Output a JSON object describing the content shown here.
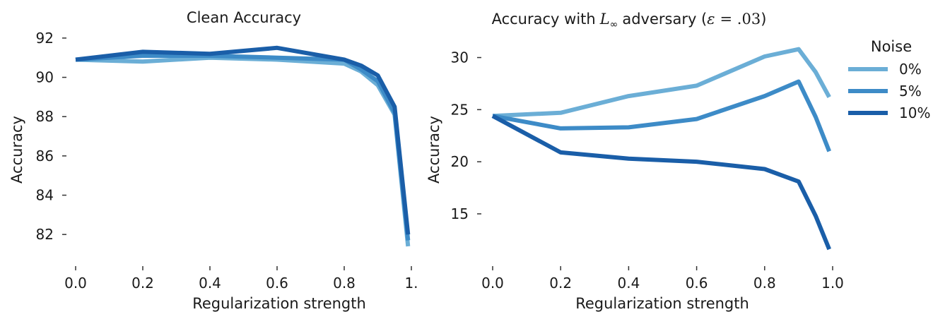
{
  "chart_data": [
    {
      "type": "line",
      "title": "Clean Accuracy",
      "xlabel": "Regularization strength",
      "ylabel": "Accuracy",
      "xlim": [
        0.0,
        1.0
      ],
      "ylim": [
        81.0,
        92.5
      ],
      "xticks": [
        0.0,
        0.2,
        0.4,
        0.6,
        0.8,
        1.0
      ],
      "xtick_labels": [
        "0.0",
        "0.2",
        "0.4",
        "0.6",
        "0.8",
        "1."
      ],
      "yticks": [
        82,
        84,
        86,
        88,
        90,
        92
      ],
      "ytick_labels": [
        "82",
        "84",
        "86",
        "88",
        "90",
        "92"
      ],
      "grid": false,
      "series": [
        {
          "color": "#6baed6",
          "x": [
            0.0,
            0.2,
            0.4,
            0.6,
            0.8,
            0.85,
            0.9,
            0.95,
            0.99
          ],
          "y": [
            90.9,
            90.8,
            91.0,
            90.9,
            90.7,
            90.3,
            89.6,
            88.1,
            81.4
          ]
        },
        {
          "color": "#3d8bc7",
          "x": [
            0.0,
            0.2,
            0.4,
            0.6,
            0.8,
            0.85,
            0.9,
            0.95,
            0.99
          ],
          "y": [
            90.9,
            91.1,
            91.1,
            91.0,
            90.9,
            90.4,
            89.8,
            88.2,
            81.7
          ]
        },
        {
          "color": "#1a5ea8",
          "x": [
            0.0,
            0.2,
            0.4,
            0.6,
            0.8,
            0.85,
            0.9,
            0.95,
            0.99
          ],
          "y": [
            90.9,
            91.3,
            91.2,
            91.5,
            90.9,
            90.6,
            90.1,
            88.5,
            82.0
          ]
        }
      ]
    },
    {
      "type": "line",
      "title_text": "Accuracy with",
      "title_math_symbol": "L",
      "title_math_subscript": "∞",
      "title_text_2": "adversary (",
      "title_math_eps": "ε",
      "title_math_rest": "= .03",
      "title_close": ")",
      "xlabel": "Regularization strength",
      "ylabel": "Accuracy",
      "xlim": [
        0.0,
        1.0
      ],
      "ylim": [
        11.0,
        32.0
      ],
      "xticks": [
        0.0,
        0.2,
        0.4,
        0.6,
        0.8,
        1.0
      ],
      "xtick_labels": [
        "0.0",
        "0.2",
        "0.4",
        "0.6",
        "0.8",
        "1.0"
      ],
      "yticks": [
        15,
        20,
        25,
        30
      ],
      "ytick_labels": [
        "15",
        "20",
        "25",
        "30"
      ],
      "grid": false,
      "legend": {
        "title": "Noise",
        "placement": "right",
        "entries": [
          {
            "label": "0%",
            "color": "#6baed6"
          },
          {
            "label": "5%",
            "color": "#3d8bc7"
          },
          {
            "label": "10%",
            "color": "#1a5ea8"
          }
        ]
      },
      "series": [
        {
          "name": "0%",
          "color": "#6baed6",
          "x": [
            0.0,
            0.2,
            0.4,
            0.6,
            0.8,
            0.9,
            0.95,
            0.99
          ],
          "y": [
            24.4,
            24.7,
            26.3,
            27.3,
            30.1,
            30.8,
            28.6,
            26.2
          ]
        },
        {
          "name": "5%",
          "color": "#3d8bc7",
          "x": [
            0.0,
            0.2,
            0.4,
            0.6,
            0.8,
            0.9,
            0.95,
            0.99
          ],
          "y": [
            24.4,
            23.2,
            23.3,
            24.1,
            26.3,
            27.7,
            24.3,
            21.0
          ]
        },
        {
          "name": "10%",
          "color": "#1a5ea8",
          "x": [
            0.0,
            0.2,
            0.4,
            0.6,
            0.8,
            0.9,
            0.95,
            0.99
          ],
          "y": [
            24.4,
            20.9,
            20.3,
            20.0,
            19.3,
            18.1,
            14.8,
            11.6
          ]
        }
      ]
    }
  ]
}
